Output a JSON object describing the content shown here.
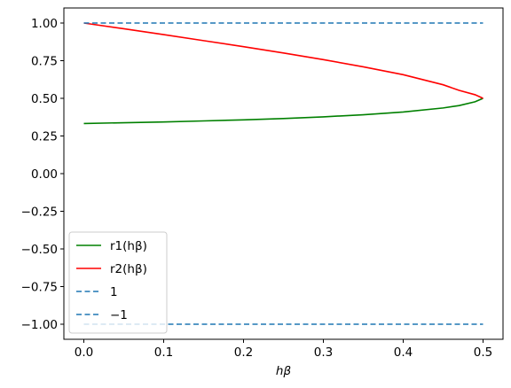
{
  "chart_data": {
    "type": "line",
    "title": "",
    "xlabel": "hβ",
    "ylabel": "",
    "xlim": [
      -0.025,
      0.525
    ],
    "ylim": [
      -1.1,
      1.1
    ],
    "xticks": [
      "0.0",
      "0.1",
      "0.2",
      "0.3",
      "0.4",
      "0.5"
    ],
    "yticks": [
      "1.00",
      "0.75",
      "0.50",
      "0.25",
      "0.00",
      "−0.25",
      "−0.50",
      "−0.75",
      "−1.00"
    ],
    "grid": false,
    "legend_placement": "lower-left",
    "series": [
      {
        "name": "r1(hβ)",
        "color": "#008000",
        "style": "solid",
        "x": [
          0.0,
          0.05,
          0.1,
          0.15,
          0.2,
          0.25,
          0.3,
          0.35,
          0.4,
          0.45,
          0.47,
          0.49,
          0.5
        ],
        "y": [
          0.333,
          0.338,
          0.343,
          0.35,
          0.357,
          0.366,
          0.377,
          0.391,
          0.409,
          0.436,
          0.452,
          0.477,
          0.5
        ]
      },
      {
        "name": "r2(hβ)",
        "color": "#ff0000",
        "style": "solid",
        "x": [
          0.0,
          0.05,
          0.1,
          0.15,
          0.2,
          0.25,
          0.3,
          0.35,
          0.4,
          0.45,
          0.47,
          0.49,
          0.5
        ],
        "y": [
          1.0,
          0.962,
          0.923,
          0.883,
          0.843,
          0.801,
          0.757,
          0.709,
          0.657,
          0.59,
          0.553,
          0.524,
          0.5
        ]
      },
      {
        "name": "1",
        "color": "#1f77b4",
        "style": "dashed",
        "x": [
          0.0,
          0.5
        ],
        "y": [
          1.0,
          1.0
        ]
      },
      {
        "name": "−1",
        "color": "#1f77b4",
        "style": "dashed",
        "x": [
          0.0,
          0.5
        ],
        "y": [
          -1.0,
          -1.0
        ]
      }
    ]
  }
}
